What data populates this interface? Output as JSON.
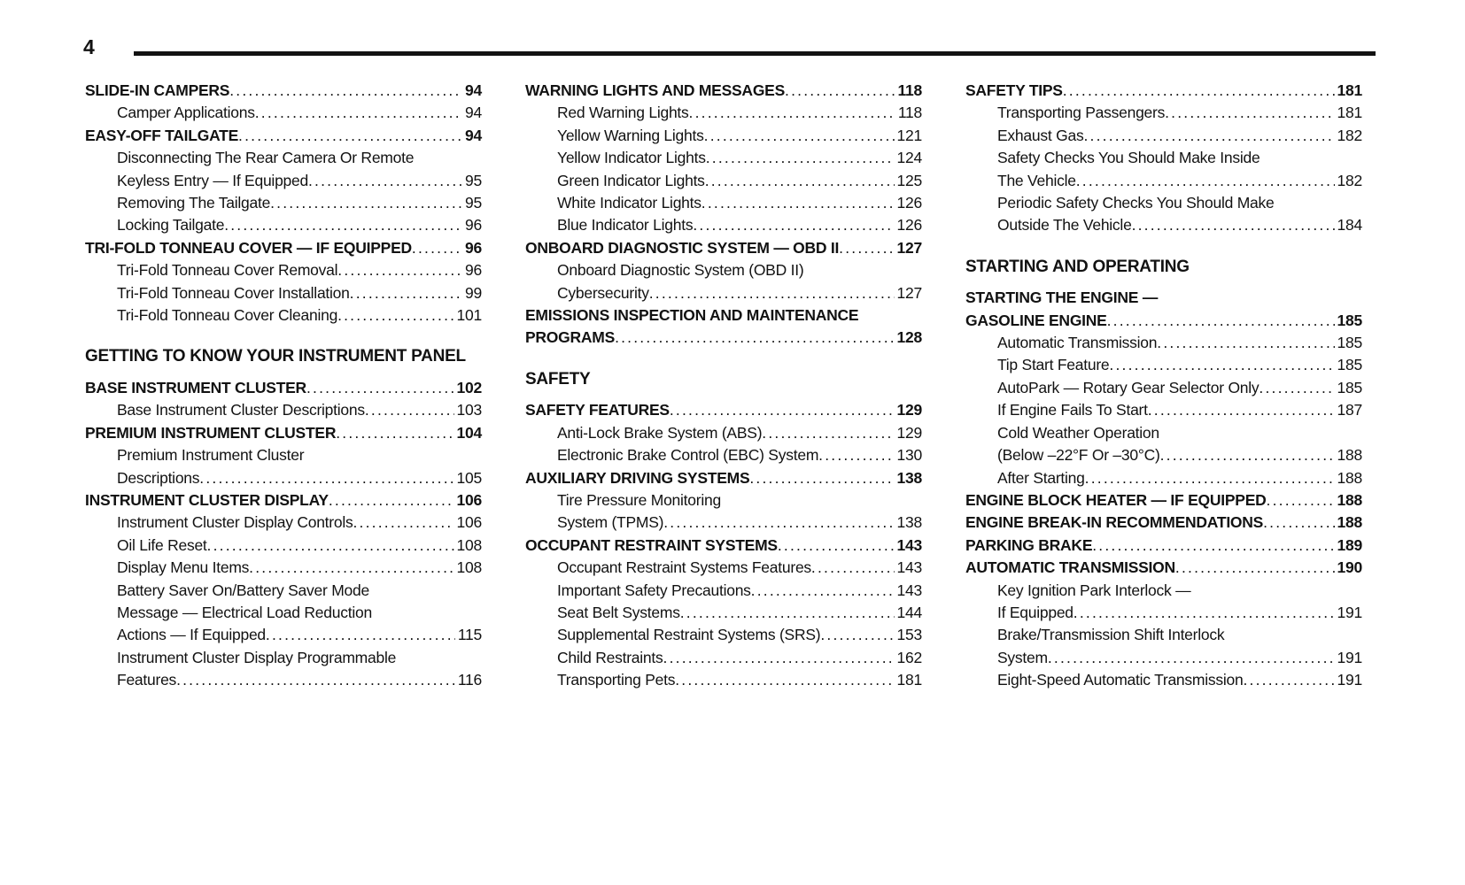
{
  "page_header": {
    "page_number": "4"
  },
  "toc": {
    "columns": [
      {
        "rows": [
          {
            "text": "SLIDE-IN CAMPERS",
            "page": "94",
            "style": "chapter"
          },
          {
            "text": "Camper Applications",
            "page": "94",
            "style": "sub"
          },
          {
            "text": "EASY-OFF TAILGATE",
            "page": "94",
            "style": "chapter"
          },
          {
            "text": "Disconnecting The Rear Camera Or Remote",
            "page": "",
            "style": "sub"
          },
          {
            "text": "Keyless Entry — If Equipped",
            "page": "95",
            "style": "sub"
          },
          {
            "text": "Removing The Tailgate",
            "page": "95",
            "style": "sub"
          },
          {
            "text": "Locking Tailgate",
            "page": "96",
            "style": "sub"
          },
          {
            "text": "TRI-FOLD TONNEAU COVER — IF EQUIPPED",
            "page": "96",
            "style": "chapter"
          },
          {
            "text": "Tri-Fold Tonneau Cover Removal",
            "page": "96",
            "style": "sub"
          },
          {
            "text": "Tri-Fold Tonneau Cover Installation",
            "page": "99",
            "style": "sub"
          },
          {
            "text": "Tri-Fold Tonneau Cover Cleaning",
            "page": "101",
            "style": "sub"
          },
          {
            "text": "GETTING TO KNOW YOUR INSTRUMENT PANEL",
            "page": "",
            "style": "section"
          },
          {
            "text": "BASE INSTRUMENT CLUSTER",
            "page": "102",
            "style": "chapter"
          },
          {
            "text": "Base Instrument Cluster Descriptions",
            "page": "103",
            "style": "sub"
          },
          {
            "text": "PREMIUM INSTRUMENT CLUSTER",
            "page": "104",
            "style": "chapter"
          },
          {
            "text": "Premium Instrument Cluster",
            "page": "",
            "style": "sub"
          },
          {
            "text": "Descriptions",
            "page": "105",
            "style": "sub"
          },
          {
            "text": "INSTRUMENT CLUSTER DISPLAY",
            "page": "106",
            "style": "chapter"
          },
          {
            "text": "Instrument Cluster Display Controls",
            "page": "106",
            "style": "sub"
          },
          {
            "text": "Oil Life Reset",
            "page": "108",
            "style": "sub"
          },
          {
            "text": "Display Menu Items",
            "page": "108",
            "style": "sub"
          },
          {
            "text": "Battery Saver On/Battery Saver Mode",
            "page": "",
            "style": "sub"
          },
          {
            "text": "Message — Electrical Load Reduction",
            "page": "",
            "style": "sub"
          },
          {
            "text": "Actions — If Equipped",
            "page": "115",
            "style": "sub"
          },
          {
            "text": "Instrument Cluster Display Programmable",
            "page": "",
            "style": "sub"
          },
          {
            "text": "Features",
            "page": "116",
            "style": "sub"
          }
        ]
      },
      {
        "rows": [
          {
            "text": "WARNING LIGHTS AND MESSAGES",
            "page": "118",
            "style": "chapter"
          },
          {
            "text": "Red Warning Lights",
            "page": "118",
            "style": "sub"
          },
          {
            "text": "Yellow Warning Lights",
            "page": "121",
            "style": "sub"
          },
          {
            "text": "Yellow Indicator Lights",
            "page": "124",
            "style": "sub"
          },
          {
            "text": "Green Indicator Lights",
            "page": "125",
            "style": "sub"
          },
          {
            "text": "White Indicator Lights",
            "page": "126",
            "style": "sub"
          },
          {
            "text": "Blue Indicator Lights",
            "page": "126",
            "style": "sub"
          },
          {
            "text": "ONBOARD DIAGNOSTIC SYSTEM — OBD II",
            "page": "127",
            "style": "chapter"
          },
          {
            "text": "Onboard Diagnostic System (OBD II)",
            "page": "",
            "style": "sub"
          },
          {
            "text": "Cybersecurity",
            "page": "127",
            "style": "sub"
          },
          {
            "text": "EMISSIONS INSPECTION AND MAINTENANCE",
            "page": "",
            "style": "chapter"
          },
          {
            "text": "PROGRAMS",
            "page": "128",
            "style": "chapter"
          },
          {
            "text": "SAFETY",
            "page": "",
            "style": "section"
          },
          {
            "text": "SAFETY FEATURES",
            "page": "129",
            "style": "chapter"
          },
          {
            "text": "Anti-Lock Brake System (ABS)",
            "page": "129",
            "style": "sub"
          },
          {
            "text": "Electronic Brake Control (EBC) System",
            "page": "130",
            "style": "sub"
          },
          {
            "text": "AUXILIARY DRIVING SYSTEMS",
            "page": "138",
            "style": "chapter"
          },
          {
            "text": "Tire Pressure Monitoring",
            "page": "",
            "style": "sub"
          },
          {
            "text": "System (TPMS)",
            "page": "138",
            "style": "sub"
          },
          {
            "text": "OCCUPANT RESTRAINT SYSTEMS",
            "page": "143",
            "style": "chapter"
          },
          {
            "text": "Occupant Restraint Systems Features",
            "page": "143",
            "style": "sub"
          },
          {
            "text": "Important Safety Precautions",
            "page": "143",
            "style": "sub"
          },
          {
            "text": "Seat Belt Systems",
            "page": "144",
            "style": "sub"
          },
          {
            "text": "Supplemental Restraint Systems (SRS)",
            "page": "153",
            "style": "sub"
          },
          {
            "text": "Child Restraints",
            "page": "162",
            "style": "sub"
          },
          {
            "text": "Transporting Pets",
            "page": "181",
            "style": "sub"
          }
        ]
      },
      {
        "rows": [
          {
            "text": "SAFETY TIPS",
            "page": "181",
            "style": "chapter"
          },
          {
            "text": "Transporting Passengers",
            "page": "181",
            "style": "sub"
          },
          {
            "text": "Exhaust Gas",
            "page": "182",
            "style": "sub"
          },
          {
            "text": "Safety Checks You Should Make Inside",
            "page": "",
            "style": "sub"
          },
          {
            "text": "The Vehicle",
            "page": "182",
            "style": "sub"
          },
          {
            "text": "Periodic Safety Checks You Should Make",
            "page": "",
            "style": "sub"
          },
          {
            "text": "Outside The Vehicle",
            "page": "184",
            "style": "sub"
          },
          {
            "text": "STARTING AND OPERATING",
            "page": "",
            "style": "section"
          },
          {
            "text": "STARTING THE ENGINE —",
            "page": "",
            "style": "chapter"
          },
          {
            "text": "GASOLINE ENGINE",
            "page": "185",
            "style": "chapter"
          },
          {
            "text": "Automatic Transmission",
            "page": "185",
            "style": "sub"
          },
          {
            "text": "Tip Start Feature",
            "page": "185",
            "style": "sub"
          },
          {
            "text": "AutoPark — Rotary Gear Selector Only",
            "page": "185",
            "style": "sub"
          },
          {
            "text": "If Engine Fails To Start",
            "page": "187",
            "style": "sub"
          },
          {
            "text": "Cold Weather Operation",
            "page": "",
            "style": "sub"
          },
          {
            "text": "(Below –22°F Or –30°C)",
            "page": "188",
            "style": "sub"
          },
          {
            "text": "After Starting",
            "page": "188",
            "style": "sub"
          },
          {
            "text": "ENGINE BLOCK HEATER — IF EQUIPPED",
            "page": "188",
            "style": "chapter"
          },
          {
            "text": "ENGINE BREAK-IN RECOMMENDATIONS",
            "page": "188",
            "style": "chapter"
          },
          {
            "text": "PARKING BRAKE",
            "page": "189",
            "style": "chapter"
          },
          {
            "text": "AUTOMATIC TRANSMISSION",
            "page": "190",
            "style": "chapter"
          },
          {
            "text": "Key Ignition Park Interlock —",
            "page": "",
            "style": "sub"
          },
          {
            "text": "If Equipped",
            "page": "191",
            "style": "sub"
          },
          {
            "text": "Brake/Transmission Shift Interlock",
            "page": "",
            "style": "sub"
          },
          {
            "text": "System",
            "page": "191",
            "style": "sub"
          },
          {
            "text": "Eight-Speed Automatic Transmission",
            "page": "191",
            "style": "sub"
          }
        ]
      }
    ]
  }
}
